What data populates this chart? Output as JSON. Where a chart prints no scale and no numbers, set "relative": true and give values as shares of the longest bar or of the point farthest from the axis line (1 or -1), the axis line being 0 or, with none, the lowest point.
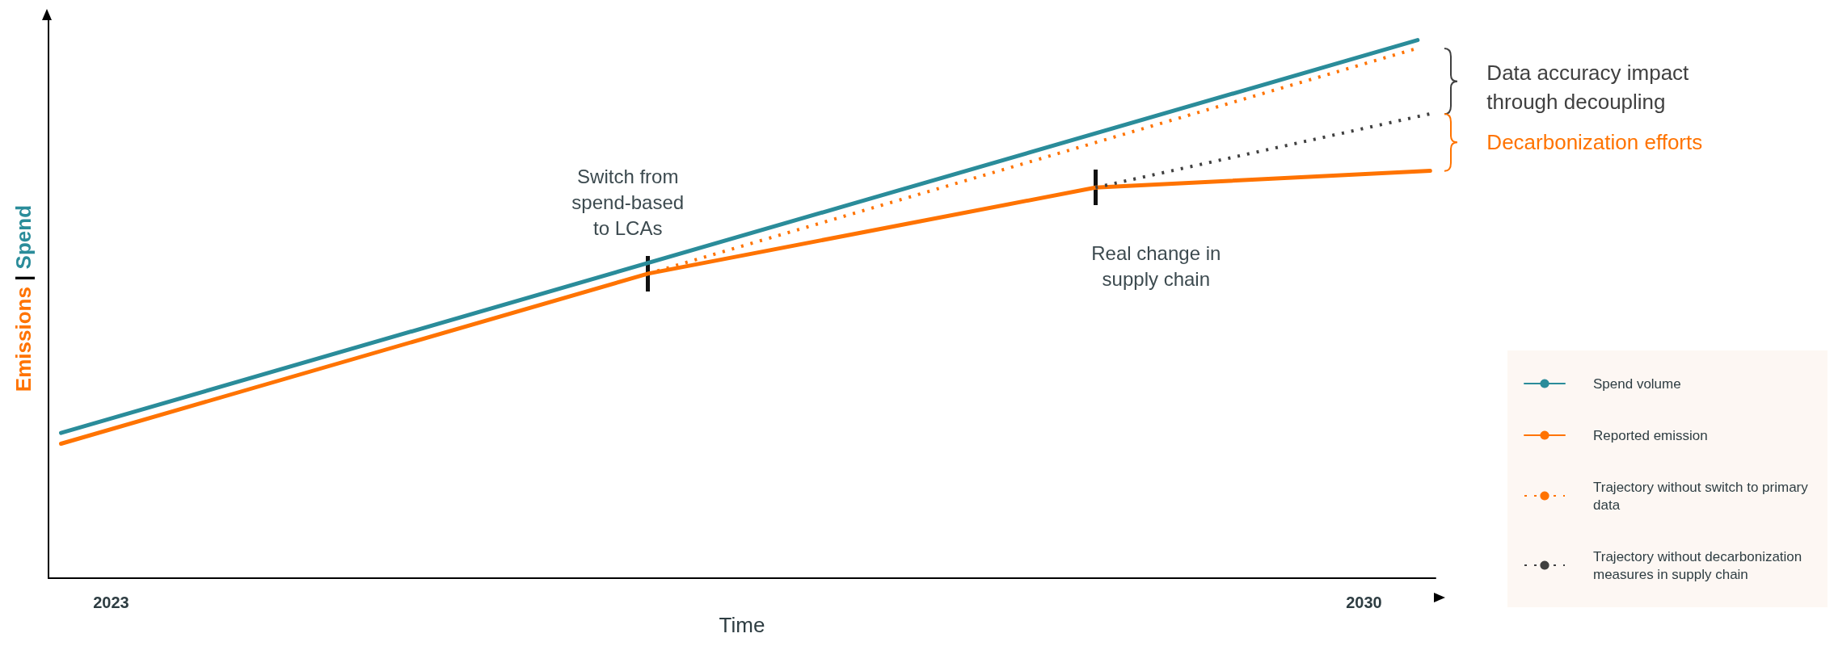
{
  "chart_data": {
    "type": "line",
    "relative": true,
    "xlabel": "Time",
    "ylabel": "Emissions | Spend",
    "xlim": [
      2022.65,
      2030.4
    ],
    "xticks": [
      2023,
      2030
    ],
    "legend": "bottom right",
    "grid": false,
    "marker": "none",
    "series": [
      {
        "name": "Spend volume",
        "color": "#2a8c9a",
        "x": [
          2022.72,
          2030.3
        ],
        "values": [
          0.27,
          1
        ],
        "line_style": "solid"
      },
      {
        "name": "Reported emission",
        "color": "#ff7300",
        "x": [
          2022.72,
          2026,
          2028.5,
          2030.37
        ],
        "values": [
          0.25,
          0.566,
          0.726,
          0.757
        ],
        "line_style": "solid"
      },
      {
        "name": "Trajectory without switch to primary data",
        "color": "#ff7300",
        "x": [
          2026,
          2030.3
        ],
        "values": [
          0.566,
          0.985
        ],
        "line_style": "dotted"
      },
      {
        "name": "Trajectory without decarbonization measures in supply chain",
        "color": "#404040",
        "x": [
          2028.5,
          2030.37
        ],
        "values": [
          0.726,
          0.863
        ],
        "line_style": "dotted"
      }
    ],
    "annotations": [
      "Switch from\nspend-based\nto LCAs",
      "Real change in\nsupply chain",
      "Data accuracy impact\nthrough decoupling",
      "Decarbonization efforts"
    ]
  }
}
